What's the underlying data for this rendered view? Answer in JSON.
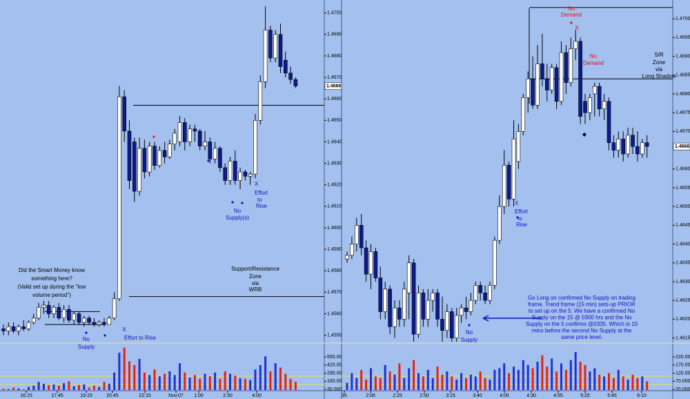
{
  "chart_data": [
    {
      "type": "candlestick",
      "up_color": "#ffffff",
      "down_color": "#0c1a8f",
      "volume_up_color": "#1f2fd8",
      "volume_down_color": "#e8200e",
      "ylim": [
        1.4547,
        1.4706
      ],
      "yticks": [
        {
          "value": 1.47,
          "label": "1.4700"
        },
        {
          "value": 1.469,
          "label": "1.4690"
        },
        {
          "value": 1.468,
          "label": "1.4680"
        },
        {
          "value": 1.467,
          "label": "1.4670"
        },
        {
          "value": 1.466,
          "label": "1.4660"
        },
        {
          "value": 1.465,
          "label": "1.4650"
        },
        {
          "value": 1.464,
          "label": "1.4640"
        },
        {
          "value": 1.463,
          "label": "1.4630"
        },
        {
          "value": 1.462,
          "label": "1.4620"
        },
        {
          "value": 1.461,
          "label": "1.4610"
        },
        {
          "value": 1.46,
          "label": "1.4600"
        },
        {
          "value": 1.459,
          "label": "1.4590"
        },
        {
          "value": 1.458,
          "label": "1.4580"
        },
        {
          "value": 1.457,
          "label": "1.4570"
        },
        {
          "value": 1.456,
          "label": "1.4560"
        },
        {
          "value": 1.455,
          "label": "1.4550"
        }
      ],
      "last_price": {
        "value": 1.4666,
        "label": "1.4666"
      },
      "levels": [
        1.4657,
        1.4568,
        1.4561,
        1.4555
      ],
      "ohlc": [
        [
          1.4553,
          1.4555,
          1.455,
          1.4552
        ],
        [
          1.4552,
          1.4556,
          1.455,
          1.4554
        ],
        [
          1.4554,
          1.4556,
          1.4551,
          1.4552
        ],
        [
          1.4552,
          1.4555,
          1.455,
          1.4554
        ],
        [
          1.4554,
          1.4557,
          1.4552,
          1.4553
        ],
        [
          1.4553,
          1.4557,
          1.4552,
          1.4556
        ],
        [
          1.4556,
          1.456,
          1.4555,
          1.4558
        ],
        [
          1.4558,
          1.4565,
          1.4557,
          1.4563
        ],
        [
          1.4563,
          1.4566,
          1.456,
          1.4564
        ],
        [
          1.4564,
          1.4566,
          1.4558,
          1.456
        ],
        [
          1.456,
          1.4564,
          1.4558,
          1.4563
        ],
        [
          1.4563,
          1.4565,
          1.4557,
          1.4558
        ],
        [
          1.4558,
          1.4564,
          1.4556,
          1.4562
        ],
        [
          1.4562,
          1.4564,
          1.4556,
          1.4557
        ],
        [
          1.4557,
          1.4561,
          1.4555,
          1.456
        ],
        [
          1.456,
          1.4561,
          1.4555,
          1.4556
        ],
        [
          1.4556,
          1.4559,
          1.4554,
          1.4558
        ],
        [
          1.4558,
          1.4559,
          1.4555,
          1.4556
        ],
        [
          1.4556,
          1.4558,
          1.4554,
          1.4555
        ],
        [
          1.4555,
          1.4557,
          1.4554,
          1.4556
        ],
        [
          1.4556,
          1.4558,
          1.4554,
          1.4555
        ],
        [
          1.4555,
          1.4559,
          1.4555,
          1.4558
        ],
        [
          1.4558,
          1.457,
          1.4557,
          1.4567
        ],
        [
          1.4567,
          1.4666,
          1.4566,
          1.4661
        ],
        [
          1.4661,
          1.4664,
          1.464,
          1.4645
        ],
        [
          1.4645,
          1.465,
          1.4618,
          1.4622
        ],
        [
          1.464,
          1.4642,
          1.4612,
          1.4617
        ],
        [
          1.4617,
          1.4642,
          1.4615,
          1.4637
        ],
        [
          1.4637,
          1.4641,
          1.4623,
          1.4626
        ],
        [
          1.4626,
          1.464,
          1.4624,
          1.4638
        ],
        [
          1.4638,
          1.464,
          1.4627,
          1.4629
        ],
        [
          1.4629,
          1.4638,
          1.4628,
          1.4636
        ],
        [
          1.4636,
          1.464,
          1.463,
          1.4633
        ],
        [
          1.4633,
          1.4641,
          1.4632,
          1.4639
        ],
        [
          1.4639,
          1.4646,
          1.4636,
          1.4644
        ],
        [
          1.464,
          1.4652,
          1.4638,
          1.4649
        ],
        [
          1.4649,
          1.4651,
          1.4636,
          1.464
        ],
        [
          1.464,
          1.4648,
          1.4638,
          1.4646
        ],
        [
          1.4646,
          1.4648,
          1.464,
          1.4645
        ],
        [
          1.4645,
          1.4646,
          1.4636,
          1.4638
        ],
        [
          1.4638,
          1.4645,
          1.4636,
          1.464
        ],
        [
          1.464,
          1.4642,
          1.463,
          1.4632
        ],
        [
          1.4632,
          1.464,
          1.463,
          1.4637
        ],
        [
          1.4637,
          1.4638,
          1.4626,
          1.4628
        ],
        [
          1.4628,
          1.463,
          1.462,
          1.4622
        ],
        [
          1.4622,
          1.4633,
          1.462,
          1.4631
        ],
        [
          1.4631,
          1.4636,
          1.462,
          1.4622
        ],
        [
          1.4622,
          1.4628,
          1.4618,
          1.4626
        ],
        [
          1.4626,
          1.4627,
          1.4622,
          1.4624
        ],
        [
          1.4624,
          1.4626,
          1.462,
          1.4625
        ],
        [
          1.4625,
          1.4653,
          1.4623,
          1.465
        ],
        [
          1.465,
          1.4671,
          1.4648,
          1.4668
        ],
        [
          1.4668,
          1.4703,
          1.4665,
          1.4692
        ],
        [
          1.4692,
          1.4694,
          1.4677,
          1.4679
        ],
        [
          1.4679,
          1.4692,
          1.4677,
          1.469
        ],
        [
          1.469,
          1.4695,
          1.4672,
          1.4675
        ],
        [
          1.4678,
          1.4682,
          1.467,
          1.4672
        ],
        [
          1.4672,
          1.4675,
          1.4667,
          1.4669
        ],
        [
          1.4669,
          1.467,
          1.4665,
          1.4666
        ]
      ],
      "volume": [
        40,
        35,
        60,
        45,
        30,
        70,
        90,
        150,
        120,
        100,
        110,
        90,
        130,
        160,
        80,
        100,
        110,
        60,
        90,
        70,
        150,
        120,
        300,
        620,
        700,
        480,
        420,
        520,
        300,
        260,
        350,
        240,
        280,
        320,
        260,
        450,
        300,
        220,
        260,
        200,
        280,
        240,
        300,
        200,
        320,
        280,
        250,
        210,
        200,
        180,
        350,
        420,
        560,
        320,
        450,
        380,
        280,
        200,
        150
      ],
      "volume_ylim": [
        20,
        740
      ],
      "volume_yticks": [
        {
          "value": 550,
          "label": "550.00"
        },
        {
          "value": 420,
          "label": "420.00"
        },
        {
          "value": 290,
          "label": "290.00"
        },
        {
          "value": 160,
          "label": "160.00"
        },
        {
          "value": 30,
          "label": "30.000"
        }
      ],
      "x_labels": [
        "16:15",
        "17:45",
        "19:15",
        "20:45",
        "22:15",
        "Nov.07",
        "1:00",
        "2:30",
        "4:00"
      ],
      "annotations": [
        {
          "color": "#000000",
          "lines": [
            "Did the Smart Money know",
            "something here?",
            "(Valid set up during the \"low",
            "volume period\")"
          ]
        },
        {
          "color": "#1010c0",
          "lines": [
            "No",
            "Supply"
          ]
        },
        {
          "color": "#1010c0",
          "lines": [
            "X",
            "Effort to Rise"
          ]
        },
        {
          "color": "#000000",
          "lines": [
            "Support/Resistance",
            "Zone",
            "via",
            "WRB"
          ]
        },
        {
          "color": "#1010c0",
          "lines": [
            "X",
            "Effort",
            "to",
            "Rise"
          ]
        },
        {
          "color": "#1010c0",
          "lines": [
            "No",
            "Supply(s)"
          ]
        }
      ]
    },
    {
      "type": "candlestick",
      "up_color": "#ffffff",
      "down_color": "#0c1a8f",
      "volume_up_color": "#1f2fd8",
      "volume_down_color": "#e8200e",
      "ylim": [
        1.4614,
        1.4705
      ],
      "yticks": [
        {
          "value": 1.47,
          "label": "1.4700"
        },
        {
          "value": 1.4695,
          "label": "1.4695"
        },
        {
          "value": 1.469,
          "label": "1.4690"
        },
        {
          "value": 1.4685,
          "label": "1.4685"
        },
        {
          "value": 1.468,
          "label": "1.4680"
        },
        {
          "value": 1.4675,
          "label": "1.4675"
        },
        {
          "value": 1.467,
          "label": "1.4670"
        },
        {
          "value": 1.466,
          "label": "1.4660"
        },
        {
          "value": 1.4655,
          "label": "1.4655"
        },
        {
          "value": 1.465,
          "label": "1.4650"
        },
        {
          "value": 1.4645,
          "label": "1.4645"
        },
        {
          "value": 1.464,
          "label": "1.4640"
        },
        {
          "value": 1.4635,
          "label": "1.4635"
        },
        {
          "value": 1.463,
          "label": "1.4630"
        },
        {
          "value": 1.4625,
          "label": "1.4625"
        },
        {
          "value": 1.462,
          "label": "1.4620"
        },
        {
          "value": 1.4615,
          "label": "1.4615"
        }
      ],
      "last_price": {
        "value": 1.4666,
        "label": "1.4666"
      },
      "levels": [
        1.4703,
        1.4684
      ],
      "ohlc": [
        [
          1.4636,
          1.4638,
          1.4635,
          1.4637
        ],
        [
          1.4637,
          1.4642,
          1.4636,
          1.464
        ],
        [
          1.464,
          1.4647,
          1.4638,
          1.4645
        ],
        [
          1.4645,
          1.4648,
          1.4637,
          1.4639
        ],
        [
          1.4639,
          1.4641,
          1.463,
          1.4632
        ],
        [
          1.4632,
          1.464,
          1.4628,
          1.4638
        ],
        [
          1.4638,
          1.4639,
          1.463,
          1.4631
        ],
        [
          1.4631,
          1.4634,
          1.462,
          1.4622
        ],
        [
          1.4622,
          1.463,
          1.462,
          1.4628
        ],
        [
          1.4628,
          1.4629,
          1.4616,
          1.4618
        ],
        [
          1.4618,
          1.4625,
          1.4615,
          1.4623
        ],
        [
          1.4623,
          1.4625,
          1.4618,
          1.462
        ],
        [
          1.462,
          1.463,
          1.4618,
          1.4628
        ],
        [
          1.4627,
          1.4637,
          1.462,
          1.4635
        ],
        [
          1.4635,
          1.4636,
          1.4614,
          1.4616
        ],
        [
          1.4616,
          1.4629,
          1.4615,
          1.4627
        ],
        [
          1.4627,
          1.4628,
          1.4618,
          1.462
        ],
        [
          1.462,
          1.4628,
          1.4618,
          1.4625
        ],
        [
          1.4625,
          1.4628,
          1.4622,
          1.4627
        ],
        [
          1.4627,
          1.4628,
          1.4618,
          1.462
        ],
        [
          1.462,
          1.4626,
          1.4614,
          1.4617
        ],
        [
          1.4617,
          1.4624,
          1.4615,
          1.4622
        ],
        [
          1.4622,
          1.4623,
          1.4614,
          1.4615
        ],
        [
          1.4615,
          1.4623,
          1.4614,
          1.4621
        ],
        [
          1.4621,
          1.4624,
          1.4619,
          1.4623
        ],
        [
          1.4623,
          1.4626,
          1.462,
          1.4622
        ],
        [
          1.4622,
          1.4627,
          1.4621,
          1.4625
        ],
        [
          1.4625,
          1.463,
          1.4624,
          1.4629
        ],
        [
          1.4629,
          1.463,
          1.4625,
          1.4627
        ],
        [
          1.4627,
          1.4629,
          1.4624,
          1.4625
        ],
        [
          1.4625,
          1.463,
          1.4624,
          1.4629
        ],
        [
          1.4629,
          1.4642,
          1.4628,
          1.4641
        ],
        [
          1.4641,
          1.4653,
          1.464,
          1.465
        ],
        [
          1.465,
          1.4665,
          1.4648,
          1.4661
        ],
        [
          1.4661,
          1.4662,
          1.465,
          1.4652
        ],
        [
          1.4652,
          1.4673,
          1.465,
          1.4668
        ],
        [
          1.4662,
          1.4672,
          1.466,
          1.467
        ],
        [
          1.467,
          1.468,
          1.4669,
          1.4679
        ],
        [
          1.4679,
          1.4686,
          1.4675,
          1.4684
        ],
        [
          1.4684,
          1.469,
          1.4676,
          1.4677
        ],
        [
          1.4677,
          1.4693,
          1.4676,
          1.4688
        ],
        [
          1.4688,
          1.4696,
          1.4682,
          1.4684
        ],
        [
          1.4684,
          1.4688,
          1.4678,
          1.4681
        ],
        [
          1.4681,
          1.4688,
          1.468,
          1.4687
        ],
        [
          1.4687,
          1.4688,
          1.4676,
          1.4678
        ],
        [
          1.4678,
          1.4694,
          1.4677,
          1.4691
        ],
        [
          1.4691,
          1.4693,
          1.468,
          1.4683
        ],
        [
          1.4683,
          1.4695,
          1.4682,
          1.4692
        ],
        [
          1.4692,
          1.4697,
          1.4689,
          1.4694
        ],
        [
          1.4694,
          1.4695,
          1.4672,
          1.4674
        ],
        [
          1.4678,
          1.468,
          1.4672,
          1.4675
        ],
        [
          1.4675,
          1.468,
          1.4673,
          1.4679
        ],
        [
          1.468,
          1.4683,
          1.4674,
          1.4682
        ],
        [
          1.4682,
          1.4683,
          1.4674,
          1.4676
        ],
        [
          1.4676,
          1.468,
          1.4673,
          1.4678
        ],
        [
          1.4678,
          1.4679,
          1.4665,
          1.4667
        ],
        [
          1.4667,
          1.4669,
          1.4663,
          1.4665
        ],
        [
          1.4665,
          1.467,
          1.4663,
          1.4668
        ],
        [
          1.4668,
          1.467,
          1.4662,
          1.4664
        ],
        [
          1.4664,
          1.4671,
          1.4663,
          1.4669
        ],
        [
          1.4669,
          1.4671,
          1.4664,
          1.4666
        ],
        [
          1.4666,
          1.467,
          1.4662,
          1.4664
        ],
        [
          1.4664,
          1.4668,
          1.4663,
          1.4667
        ],
        [
          1.4667,
          1.4669,
          1.4663,
          1.4666
        ]
      ],
      "volume": [
        60,
        120,
        90,
        140,
        80,
        150,
        100,
        90,
        170,
        130,
        110,
        180,
        90,
        150,
        200,
        120,
        100,
        140,
        90,
        160,
        110,
        130,
        100,
        80,
        120,
        90,
        110,
        100,
        130,
        90,
        80,
        140,
        150,
        180,
        120,
        160,
        140,
        200,
        170,
        150,
        190,
        230,
        160,
        210,
        130,
        180,
        140,
        200,
        250,
        190,
        170,
        130,
        150,
        110,
        100,
        120,
        90,
        140,
        100,
        80,
        110,
        90,
        100,
        70
      ],
      "volume_ylim": [
        16,
        292
      ],
      "volume_yticks": [
        {
          "value": 220,
          "label": "220.00"
        },
        {
          "value": 170,
          "label": "170.00"
        },
        {
          "value": 120,
          "label": "120.00"
        },
        {
          "value": 70,
          "label": "70.000"
        },
        {
          "value": 20,
          "label": "20.000"
        }
      ],
      "x_labels": [
        "35",
        "2:00",
        "2:25",
        "2:50",
        "3:15",
        "3:40",
        "4:05",
        "4:30",
        "4:55",
        "5:20",
        "5:45",
        "6:10"
      ],
      "annotations": [
        {
          "color": "#1010c0",
          "lines": [
            "X",
            "Effort",
            "to",
            "Rise"
          ]
        },
        {
          "color": "#1010c0",
          "lines": [
            "No",
            "Supply"
          ]
        },
        {
          "color": "#e01010",
          "lines": [
            "No",
            "Demand"
          ]
        },
        {
          "color": "#e01010",
          "lines": [
            "X"
          ]
        },
        {
          "color": "#e01010",
          "lines": [
            "No",
            "Demand"
          ]
        },
        {
          "color": "#000000",
          "lines": [
            "S/R",
            "Zone",
            "via",
            "Long Shadow"
          ]
        },
        {
          "color": "#1010c0",
          "lines": [
            "Go Long on confirmed No Supply on trading",
            "frame.  Trend frame (15 min) sets-up PRIOR",
            "to set up on the 5. We have a confirmed No",
            "Supply on the 15 @ 0300 hrs and the No",
            "Supply on the 5 confirms @0335. Which is 10",
            "mins before the second No Supply at the",
            "same price level."
          ]
        }
      ]
    }
  ]
}
